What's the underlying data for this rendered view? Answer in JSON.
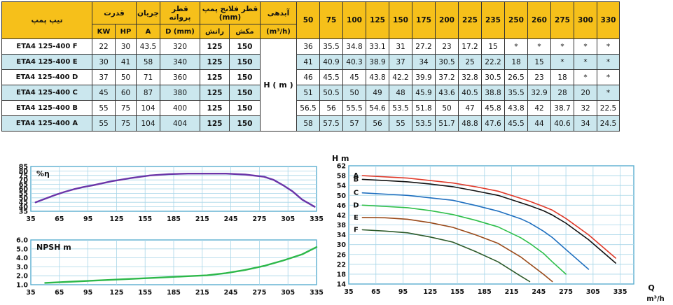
{
  "table": {
    "header": {
      "model": "تیپ پمپ",
      "power": "قدرت",
      "current": "جریان",
      "impeller": "قطر پروانه",
      "flange": "قطر فلانج پمپ (mm)",
      "flow": "آبدهی",
      "flow_unit": "(m³/h)",
      "kw": "KW",
      "hp": "HP",
      "amp": "A",
      "dmm": "D (mm)",
      "discharge": "رانش",
      "suction": "مکش"
    },
    "flow_points": [
      "50",
      "75",
      "100",
      "125",
      "150",
      "175",
      "200",
      "225",
      "235",
      "250",
      "260",
      "275",
      "300",
      "330"
    ],
    "head_label": "H ( m )",
    "rows": [
      {
        "model": "ETA4 125-400 F",
        "kw": "22",
        "hp": "30",
        "amp": "43.5",
        "d": "320",
        "discharge": "125",
        "suction": "150",
        "heads": [
          "36",
          "35.5",
          "34.8",
          "33.1",
          "31",
          "27.2",
          "23",
          "17.2",
          "15",
          "*",
          "*",
          "*",
          "*",
          "*"
        ]
      },
      {
        "model": "ETA4 125-400 E",
        "kw": "30",
        "hp": "41",
        "amp": "58",
        "d": "340",
        "discharge": "125",
        "suction": "150",
        "heads": [
          "41",
          "40.9",
          "40.3",
          "38.9",
          "37",
          "34",
          "30.5",
          "25",
          "22.2",
          "18",
          "15",
          "*",
          "*",
          "*"
        ]
      },
      {
        "model": "ETA4 125-400 D",
        "kw": "37",
        "hp": "50",
        "amp": "71",
        "d": "360",
        "discharge": "125",
        "suction": "150",
        "heads": [
          "46",
          "45.5",
          "45",
          "43.8",
          "42.2",
          "39.9",
          "37.2",
          "32.8",
          "30.5",
          "26.5",
          "23",
          "18",
          "*",
          "*"
        ]
      },
      {
        "model": "ETA4 125-400 C",
        "kw": "45",
        "hp": "60",
        "amp": "87",
        "d": "380",
        "discharge": "125",
        "suction": "150",
        "heads": [
          "51",
          "50.5",
          "50",
          "49",
          "48",
          "45.9",
          "43.6",
          "40.5",
          "38.8",
          "35.5",
          "32.9",
          "28",
          "20",
          "*"
        ]
      },
      {
        "model": "ETA4 125-400 B",
        "kw": "55",
        "hp": "75",
        "amp": "104",
        "d": "400",
        "discharge": "125",
        "suction": "150",
        "heads": [
          "56.5",
          "56",
          "55.5",
          "54.6",
          "53.5",
          "51.8",
          "50",
          "47",
          "45.8",
          "43.8",
          "42",
          "38.7",
          "32",
          "22.5"
        ]
      },
      {
        "model": "ETA4 125-400 A",
        "kw": "55",
        "hp": "75",
        "amp": "104",
        "d": "404",
        "discharge": "125",
        "suction": "150",
        "heads": [
          "58",
          "57.5",
          "57",
          "56",
          "55",
          "53.5",
          "51.7",
          "48.8",
          "47.6",
          "45.5",
          "44",
          "40.6",
          "34",
          "24.5"
        ]
      }
    ]
  },
  "chart_data": [
    {
      "type": "line",
      "ylabel": "%η",
      "ylim": [
        35,
        85
      ],
      "xlim": [
        35,
        335
      ],
      "xticks": [
        "35",
        "65",
        "95",
        "125",
        "155",
        "185",
        "215",
        "245",
        "275",
        "305",
        "335"
      ],
      "yticks": [
        "85",
        "80",
        "75",
        "70",
        "65",
        "60",
        "55",
        "50",
        "45",
        "40",
        "35"
      ],
      "grid": true,
      "series": [
        {
          "color": "#6a35a8",
          "x": [
            40,
            50,
            60,
            70,
            80,
            90,
            100,
            120,
            140,
            160,
            180,
            200,
            220,
            240,
            260,
            280,
            290,
            300,
            310,
            320,
            333
          ],
          "y": [
            45,
            49,
            53,
            56.5,
            59.5,
            62,
            64,
            68.5,
            72,
            75,
            76.5,
            77,
            77,
            77,
            76,
            73.5,
            70,
            64,
            57,
            48,
            40
          ]
        }
      ]
    },
    {
      "type": "line",
      "ylabel": "NPSH m",
      "ylim": [
        1.0,
        6.0
      ],
      "xlim": [
        35,
        335
      ],
      "xticks": [
        "35",
        "65",
        "95",
        "125",
        "155",
        "185",
        "215",
        "245",
        "275",
        "305",
        "335"
      ],
      "yticks": [
        "6.0",
        "5.0",
        "4.0",
        "3.0",
        "2.0",
        "1.0"
      ],
      "grid": true,
      "series": [
        {
          "color": "#2db84a",
          "x": [
            50,
            80,
            110,
            140,
            170,
            200,
            220,
            240,
            260,
            280,
            300,
            320,
            335
          ],
          "y": [
            1.2,
            1.35,
            1.5,
            1.65,
            1.8,
            1.95,
            2.05,
            2.3,
            2.65,
            3.1,
            3.7,
            4.4,
            5.2
          ]
        }
      ]
    },
    {
      "type": "line",
      "ylabel": "H m",
      "xlabel": "Q m³/h",
      "xlim": [
        35,
        350
      ],
      "ylim": [
        14,
        62
      ],
      "xticks": [
        "35",
        "65",
        "95",
        "125",
        "155",
        "185",
        "215",
        "245",
        "275",
        "305",
        "335"
      ],
      "yticks": [
        "62",
        "58",
        "54",
        "50",
        "46",
        "42",
        "38",
        "34",
        "30",
        "26",
        "22",
        "18",
        "14"
      ],
      "grid": true,
      "series": [
        {
          "name": "A",
          "color": "#e03a2a",
          "x": [
            50,
            75,
            100,
            125,
            150,
            175,
            200,
            225,
            235,
            250,
            260,
            275,
            300,
            330
          ],
          "y": [
            58,
            57.5,
            57,
            56,
            55,
            53.5,
            51.7,
            48.8,
            47.6,
            45.5,
            44,
            40.6,
            34,
            24.5
          ]
        },
        {
          "name": "B",
          "color": "#111111",
          "x": [
            50,
            75,
            100,
            125,
            150,
            175,
            200,
            225,
            235,
            250,
            260,
            275,
            300,
            330
          ],
          "y": [
            56.5,
            56,
            55.5,
            54.6,
            53.5,
            51.8,
            50,
            47,
            45.8,
            43.8,
            42,
            38.7,
            32,
            22.5
          ]
        },
        {
          "name": "C",
          "color": "#1f6fbf",
          "x": [
            50,
            75,
            100,
            125,
            150,
            175,
            200,
            225,
            235,
            250,
            260,
            275,
            300
          ],
          "y": [
            51,
            50.5,
            50,
            49,
            48,
            45.9,
            43.6,
            40.5,
            38.8,
            35.5,
            32.9,
            28,
            20
          ]
        },
        {
          "name": "D",
          "color": "#2fbf4a",
          "x": [
            50,
            75,
            100,
            125,
            150,
            175,
            200,
            225,
            235,
            250,
            260,
            275
          ],
          "y": [
            46,
            45.5,
            45,
            43.8,
            42.2,
            39.9,
            37.2,
            32.8,
            30.5,
            26.5,
            23,
            18
          ]
        },
        {
          "name": "E",
          "color": "#9a4a1a",
          "x": [
            50,
            75,
            100,
            125,
            150,
            175,
            200,
            225,
            235,
            250,
            260
          ],
          "y": [
            41,
            40.9,
            40.3,
            38.9,
            37,
            34,
            30.5,
            25,
            22.2,
            18,
            15
          ]
        },
        {
          "name": "F",
          "color": "#2d5a2a",
          "x": [
            50,
            75,
            100,
            125,
            150,
            175,
            200,
            225,
            235
          ],
          "y": [
            36,
            35.5,
            34.8,
            33.1,
            31,
            27.2,
            23,
            17.2,
            15
          ]
        }
      ]
    }
  ]
}
